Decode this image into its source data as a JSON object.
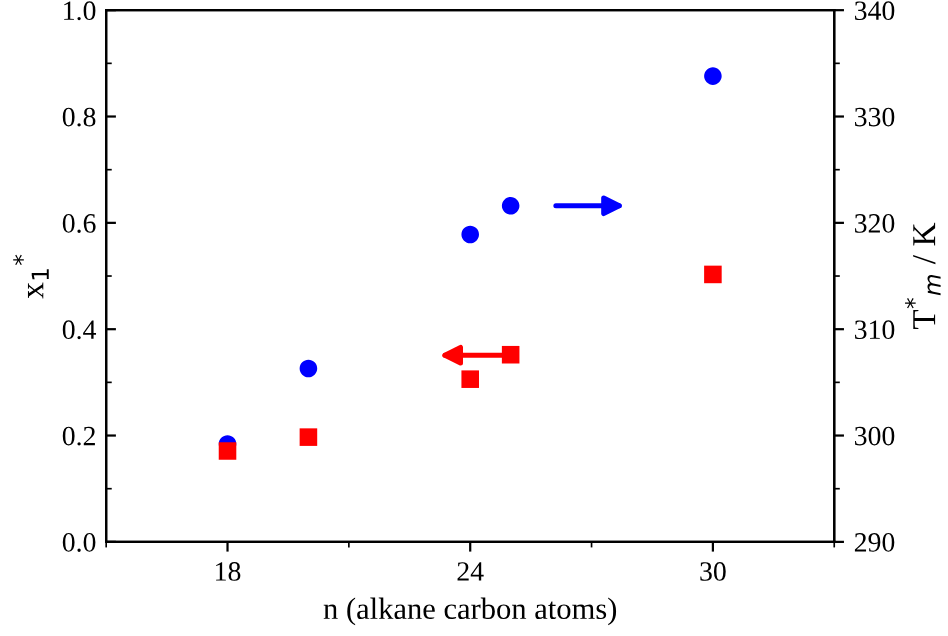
{
  "chart_data": {
    "type": "scatter",
    "xlabel": "n (alkane carbon atoms)",
    "ylabel": "x$_{1}$$^{*}$",
    "y2label": "T$^{*}$$_{m}$ / K",
    "x": [
      18,
      20,
      24,
      25,
      30
    ],
    "series": [
      {
        "color": "#ff0000",
        "marker": "square",
        "axis": "y",
        "values": [
          0.171,
          0.197,
          0.306,
          0.352,
          0.503
        ]
      },
      {
        "color": "#0000ff",
        "marker": "circle",
        "axis": "y2",
        "values": [
          299.2,
          306.3,
          318.9,
          321.6,
          333.8
        ]
      }
    ],
    "xlim": [
      15,
      33
    ],
    "xticks": [
      18,
      24,
      30
    ],
    "ylim": [
      0,
      1
    ],
    "yticks": [
      {
        "value": 0,
        "label": "0.0"
      },
      0.2,
      0.4,
      0.6,
      0.8,
      {
        "value": 1,
        "label": "1.0"
      }
    ],
    "y2lim": [
      290,
      340
    ],
    "y2ticks": [
      290,
      300,
      310,
      320,
      330,
      340
    ],
    "grid": false,
    "legend": false
  }
}
